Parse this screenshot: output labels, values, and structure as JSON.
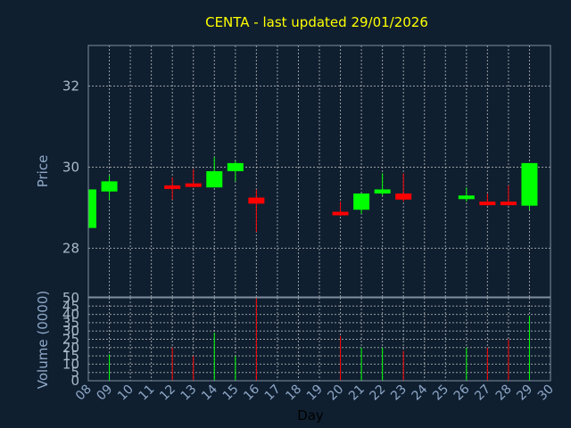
{
  "chart_data": {
    "type": "candlestick",
    "title": "CENTA - last updated 29/01/2026",
    "xlabel": "Day",
    "ylabel_price": "Price",
    "ylabel_volume": "Volume (0000)",
    "x_ticks": [
      "08",
      "09",
      "10",
      "11",
      "12",
      "13",
      "14",
      "15",
      "16",
      "17",
      "18",
      "19",
      "20",
      "21",
      "22",
      "23",
      "24",
      "25",
      "26",
      "27",
      "28",
      "29",
      "30"
    ],
    "price_ylim": [
      26.8,
      33.0
    ],
    "price_ticks": [
      28,
      30,
      32
    ],
    "volume_ylim": [
      0,
      50
    ],
    "volume_ticks": [
      0,
      5,
      10,
      15,
      20,
      25,
      30,
      35,
      40,
      45,
      50
    ],
    "grid": true,
    "colors": {
      "up": "#00ff00",
      "down": "#ff0000",
      "background": "#0f1f30",
      "title": "#ffff00"
    },
    "candles": [
      {
        "day": "08",
        "open": 28.5,
        "close": 29.45,
        "high": 29.45,
        "low": 28.5,
        "volume": 0
      },
      {
        "day": "09",
        "open": 29.4,
        "close": 29.65,
        "high": 29.8,
        "low": 29.2,
        "volume": 16
      },
      {
        "day": "12",
        "open": 29.55,
        "close": 29.5,
        "high": 29.75,
        "low": 29.2,
        "volume": 20
      },
      {
        "day": "13",
        "open": 29.6,
        "close": 29.55,
        "high": 29.95,
        "low": 29.5,
        "volume": 15
      },
      {
        "day": "14",
        "open": 29.5,
        "close": 29.9,
        "high": 30.25,
        "low": 29.5,
        "volume": 29
      },
      {
        "day": "15",
        "open": 29.9,
        "close": 30.1,
        "high": 30.15,
        "low": 29.65,
        "volume": 15
      },
      {
        "day": "16",
        "open": 29.25,
        "close": 29.1,
        "high": 29.45,
        "low": 28.4,
        "volume": 50
      },
      {
        "day": "20",
        "open": 28.9,
        "close": 28.85,
        "high": 29.15,
        "low": 28.8,
        "volume": 27
      },
      {
        "day": "21",
        "open": 28.95,
        "close": 29.35,
        "high": 29.35,
        "low": 28.85,
        "volume": 20
      },
      {
        "day": "22",
        "open": 29.35,
        "close": 29.45,
        "high": 29.85,
        "low": 29.3,
        "volume": 20
      },
      {
        "day": "23",
        "open": 29.35,
        "close": 29.2,
        "high": 29.85,
        "low": 29.15,
        "volume": 18
      },
      {
        "day": "26",
        "open": 29.25,
        "close": 29.3,
        "high": 29.5,
        "low": 29.15,
        "volume": 20
      },
      {
        "day": "27",
        "open": 29.15,
        "close": 29.1,
        "high": 29.35,
        "low": 29.05,
        "volume": 20
      },
      {
        "day": "28",
        "open": 29.15,
        "close": 29.1,
        "high": 29.55,
        "low": 29.05,
        "volume": 25
      },
      {
        "day": "29",
        "open": 29.05,
        "close": 30.1,
        "high": 30.1,
        "low": 28.95,
        "volume": 39
      }
    ]
  }
}
